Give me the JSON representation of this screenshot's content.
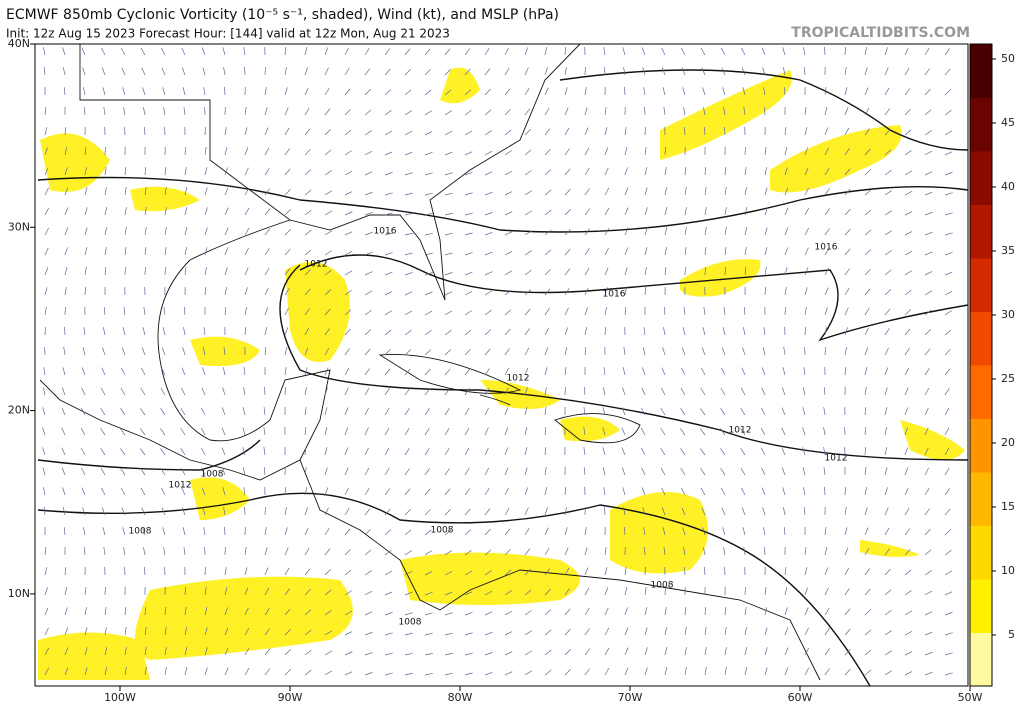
{
  "header": {
    "title": "ECMWF 850mb Cyclonic Vorticity (10⁻⁵ s⁻¹, shaded), Wind (kt), and MSLP (hPa)",
    "subtitle": "Init: 12z Aug 15 2023   Forecast Hour: [144]   valid at 12z Mon, Aug 21 2023",
    "source": "TROPICALTIDBITS.COM"
  },
  "map": {
    "lat_labels": [
      "40N",
      "30N",
      "20N",
      "10N"
    ],
    "lon_labels": [
      "100W",
      "90W",
      "80W",
      "70W",
      "60W",
      "50W"
    ],
    "isobar_labels": [
      "1016",
      "1012",
      "1016",
      "1016",
      "1012",
      "1012",
      "1012",
      "1008",
      "1012",
      "1008",
      "1008",
      "1008",
      "1008"
    ]
  },
  "colorbar": {
    "ticks": [
      5,
      10,
      15,
      20,
      25,
      30,
      35,
      40,
      45,
      50
    ]
  }
}
